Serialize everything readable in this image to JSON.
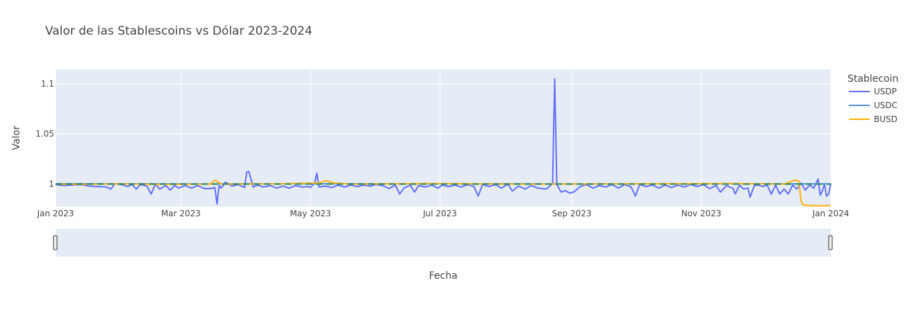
{
  "chart_data": {
    "type": "line",
    "title": "Valor de las Stablescoins vs Dólar 2023-2024",
    "xlabel": "Fecha",
    "ylabel": "Valor",
    "x_range": [
      "2023-01-01",
      "2024-01-01"
    ],
    "ylim": [
      0.9775,
      1.1145
    ],
    "x_ticks": [
      {
        "date": "2023-01-01",
        "label": "Jan 2023"
      },
      {
        "date": "2023-03-01",
        "label": "Mar 2023"
      },
      {
        "date": "2023-05-01",
        "label": "May 2023"
      },
      {
        "date": "2023-07-01",
        "label": "Jul 2023"
      },
      {
        "date": "2023-09-01",
        "label": "Sep 2023"
      },
      {
        "date": "2023-11-01",
        "label": "Nov 2023"
      },
      {
        "date": "2024-01-01",
        "label": "Jan 2024"
      }
    ],
    "y_ticks": [
      {
        "value": 1.0,
        "label": "1"
      },
      {
        "value": 1.05,
        "label": "1.05"
      },
      {
        "value": 1.1,
        "label": "1.1"
      }
    ],
    "grid": true,
    "legend": {
      "title": "Stablecoin",
      "placement": "right",
      "entries": [
        {
          "name": "USDP",
          "color": "#636efa"
        },
        {
          "name": "USDC",
          "color": "#4a90e2"
        },
        {
          "name": "BUSD",
          "color": "#ffb000"
        }
      ]
    },
    "reference_line": {
      "value": 1.0,
      "color": "#2e8b57",
      "style": "dashed"
    },
    "range_slider": true,
    "series": [
      {
        "name": "USDP",
        "color": "#636efa",
        "points": [
          [
            "2023-01-01",
            0.9995
          ],
          [
            "2023-01-05",
            0.9985
          ],
          [
            "2023-01-09",
            0.999
          ],
          [
            "2023-01-13",
            0.9995
          ],
          [
            "2023-01-17",
            0.998
          ],
          [
            "2023-01-21",
            0.9975
          ],
          [
            "2023-01-25",
            0.997
          ],
          [
            "2023-01-27",
            0.995
          ],
          [
            "2023-01-29",
            1.0005
          ],
          [
            "2023-02-02",
            0.999
          ],
          [
            "2023-02-04",
            0.9975
          ],
          [
            "2023-02-06",
            0.9995
          ],
          [
            "2023-02-08",
            0.995
          ],
          [
            "2023-02-10",
            0.9995
          ],
          [
            "2023-02-13",
            0.998
          ],
          [
            "2023-02-15",
            0.99
          ],
          [
            "2023-02-17",
            1.0
          ],
          [
            "2023-02-19",
            0.995
          ],
          [
            "2023-02-22",
            0.9985
          ],
          [
            "2023-02-24",
            0.994
          ],
          [
            "2023-02-26",
            0.9985
          ],
          [
            "2023-02-28",
            0.996
          ],
          [
            "2023-03-03",
            0.9985
          ],
          [
            "2023-03-06",
            0.996
          ],
          [
            "2023-03-09",
            0.9985
          ],
          [
            "2023-03-12",
            0.9955
          ],
          [
            "2023-03-15",
            0.9955
          ],
          [
            "2023-03-17",
            0.9965
          ],
          [
            "2023-03-18",
            0.98
          ],
          [
            "2023-03-19",
            0.9985
          ],
          [
            "2023-03-20",
            0.996
          ],
          [
            "2023-03-22",
            1.002
          ],
          [
            "2023-03-25",
            0.998
          ],
          [
            "2023-03-28",
            0.9995
          ],
          [
            "2023-03-31",
            0.9965
          ],
          [
            "2023-04-01",
            1.012
          ],
          [
            "2023-04-02",
            1.0125
          ],
          [
            "2023-04-04",
            0.997
          ],
          [
            "2023-04-06",
            0.999
          ],
          [
            "2023-04-09",
            0.997
          ],
          [
            "2023-04-12",
            0.9985
          ],
          [
            "2023-04-15",
            0.996
          ],
          [
            "2023-04-18",
            0.998
          ],
          [
            "2023-04-21",
            0.996
          ],
          [
            "2023-04-24",
            0.9985
          ],
          [
            "2023-04-27",
            0.997
          ],
          [
            "2023-04-30",
            0.9975
          ],
          [
            "2023-05-01",
            0.9965
          ],
          [
            "2023-05-03",
            1.001
          ],
          [
            "2023-05-04",
            1.011
          ],
          [
            "2023-05-05",
            0.997
          ],
          [
            "2023-05-08",
            0.998
          ],
          [
            "2023-05-11",
            0.9965
          ],
          [
            "2023-05-14",
            0.999
          ],
          [
            "2023-05-17",
            0.997
          ],
          [
            "2023-05-20",
            0.999
          ],
          [
            "2023-05-23",
            0.9975
          ],
          [
            "2023-05-26",
            0.999
          ],
          [
            "2023-05-29",
            0.998
          ],
          [
            "2023-06-01",
            0.9995
          ],
          [
            "2023-06-04",
            0.9985
          ],
          [
            "2023-06-07",
            0.9955
          ],
          [
            "2023-06-10",
            0.999
          ],
          [
            "2023-06-12",
            0.99
          ],
          [
            "2023-06-14",
            0.996
          ],
          [
            "2023-06-17",
            0.999
          ],
          [
            "2023-06-19",
            0.992
          ],
          [
            "2023-06-21",
            0.9985
          ],
          [
            "2023-06-24",
            0.997
          ],
          [
            "2023-06-27",
            0.999
          ],
          [
            "2023-06-30",
            0.996
          ],
          [
            "2023-07-02",
            0.999
          ],
          [
            "2023-07-05",
            0.9975
          ],
          [
            "2023-07-08",
            0.999
          ],
          [
            "2023-07-11",
            0.997
          ],
          [
            "2023-07-14",
            0.9995
          ],
          [
            "2023-07-17",
            0.9975
          ],
          [
            "2023-07-19",
            0.988
          ],
          [
            "2023-07-21",
            0.9995
          ],
          [
            "2023-07-24",
            0.9975
          ],
          [
            "2023-07-27",
            0.9995
          ],
          [
            "2023-07-30",
            0.996
          ],
          [
            "2023-08-02",
            1.0
          ],
          [
            "2023-08-04",
            0.993
          ],
          [
            "2023-08-07",
            0.998
          ],
          [
            "2023-08-10",
            0.995
          ],
          [
            "2023-08-13",
            0.9985
          ],
          [
            "2023-08-16",
            0.996
          ],
          [
            "2023-08-20",
            0.995
          ],
          [
            "2023-08-23",
            1.0005
          ],
          [
            "2023-08-24",
            1.105
          ],
          [
            "2023-08-25",
            0.9995
          ],
          [
            "2023-08-27",
            0.992
          ],
          [
            "2023-08-29",
            0.9935
          ],
          [
            "2023-08-31",
            0.991
          ],
          [
            "2023-09-02",
            0.992
          ],
          [
            "2023-09-05",
            0.9975
          ],
          [
            "2023-09-08",
            0.9995
          ],
          [
            "2023-09-11",
            0.996
          ],
          [
            "2023-09-14",
            0.9985
          ],
          [
            "2023-09-17",
            0.997
          ],
          [
            "2023-09-20",
            0.9995
          ],
          [
            "2023-09-23",
            0.996
          ],
          [
            "2023-09-26",
            0.9995
          ],
          [
            "2023-09-29",
            0.997
          ],
          [
            "2023-10-01",
            0.988
          ],
          [
            "2023-10-03",
            0.9995
          ],
          [
            "2023-10-06",
            0.9975
          ],
          [
            "2023-10-09",
            0.999
          ],
          [
            "2023-10-12",
            0.996
          ],
          [
            "2023-10-15",
            0.999
          ],
          [
            "2023-10-18",
            0.9965
          ],
          [
            "2023-10-21",
            0.999
          ],
          [
            "2023-10-24",
            0.997
          ],
          [
            "2023-10-27",
            0.9995
          ],
          [
            "2023-10-30",
            0.9975
          ],
          [
            "2023-11-02",
            0.9995
          ],
          [
            "2023-11-05",
            0.9955
          ],
          [
            "2023-11-08",
            0.9985
          ],
          [
            "2023-11-10",
            0.992
          ],
          [
            "2023-11-13",
            0.9985
          ],
          [
            "2023-11-16",
            0.9955
          ],
          [
            "2023-11-17",
            0.99
          ],
          [
            "2023-11-19",
            0.999
          ],
          [
            "2023-11-21",
            0.995
          ],
          [
            "2023-11-23",
            0.996
          ],
          [
            "2023-11-24",
            0.987
          ],
          [
            "2023-11-26",
            0.9985
          ],
          [
            "2023-11-28",
            0.999
          ],
          [
            "2023-11-30",
            0.9975
          ],
          [
            "2023-12-02",
            0.999
          ],
          [
            "2023-12-04",
            0.99
          ],
          [
            "2023-12-06",
            0.999
          ],
          [
            "2023-12-08",
            0.99
          ],
          [
            "2023-12-10",
            0.995
          ],
          [
            "2023-12-12",
            0.99
          ],
          [
            "2023-12-14",
            0.999
          ],
          [
            "2023-12-16",
            0.995
          ],
          [
            "2023-12-18",
            1.001
          ],
          [
            "2023-12-20",
            0.994
          ],
          [
            "2023-12-22",
            0.999
          ],
          [
            "2023-12-24",
            0.996
          ],
          [
            "2023-12-26",
            1.005
          ],
          [
            "2023-12-27",
            0.989
          ],
          [
            "2023-12-28",
            0.993
          ],
          [
            "2023-12-29",
            1.0
          ],
          [
            "2023-12-30",
            0.988
          ],
          [
            "2023-12-31",
            0.99
          ],
          [
            "2024-01-01",
            1.0005
          ]
        ]
      },
      {
        "name": "USDC",
        "color": "#4a90e2",
        "points": [
          [
            "2023-01-01",
            1.0003
          ],
          [
            "2023-03-15",
            1.0002
          ],
          [
            "2023-06-01",
            1.0003
          ],
          [
            "2023-09-01",
            1.0002
          ],
          [
            "2023-12-01",
            1.0003
          ],
          [
            "2024-01-01",
            1.0002
          ]
        ]
      },
      {
        "name": "BUSD",
        "color": "#ffb000",
        "points": [
          [
            "2023-01-01",
            1.0
          ],
          [
            "2023-01-10",
            0.9998
          ],
          [
            "2023-02-01",
            1.0002
          ],
          [
            "2023-02-20",
            0.9998
          ],
          [
            "2023-03-15",
            1.0
          ],
          [
            "2023-03-17",
            1.004
          ],
          [
            "2023-03-20",
            1.0
          ],
          [
            "2023-04-15",
            1.0002
          ],
          [
            "2023-05-05",
            1.001
          ],
          [
            "2023-05-08",
            1.0035
          ],
          [
            "2023-05-12",
            1.001
          ],
          [
            "2023-05-20",
            1.0
          ],
          [
            "2023-06-25",
            1.0005
          ],
          [
            "2023-08-10",
            1.0
          ],
          [
            "2023-09-15",
            1.0002
          ],
          [
            "2023-10-20",
            1.0003
          ],
          [
            "2023-11-15",
            1.0005
          ],
          [
            "2023-12-10",
            1.0
          ],
          [
            "2023-12-15",
            1.004
          ],
          [
            "2023-12-17",
            1.003
          ],
          [
            "2023-12-18",
            0.983
          ],
          [
            "2023-12-19",
            0.979
          ],
          [
            "2023-12-22",
            0.9785
          ],
          [
            "2024-01-01",
            0.9785
          ]
        ]
      }
    ]
  }
}
